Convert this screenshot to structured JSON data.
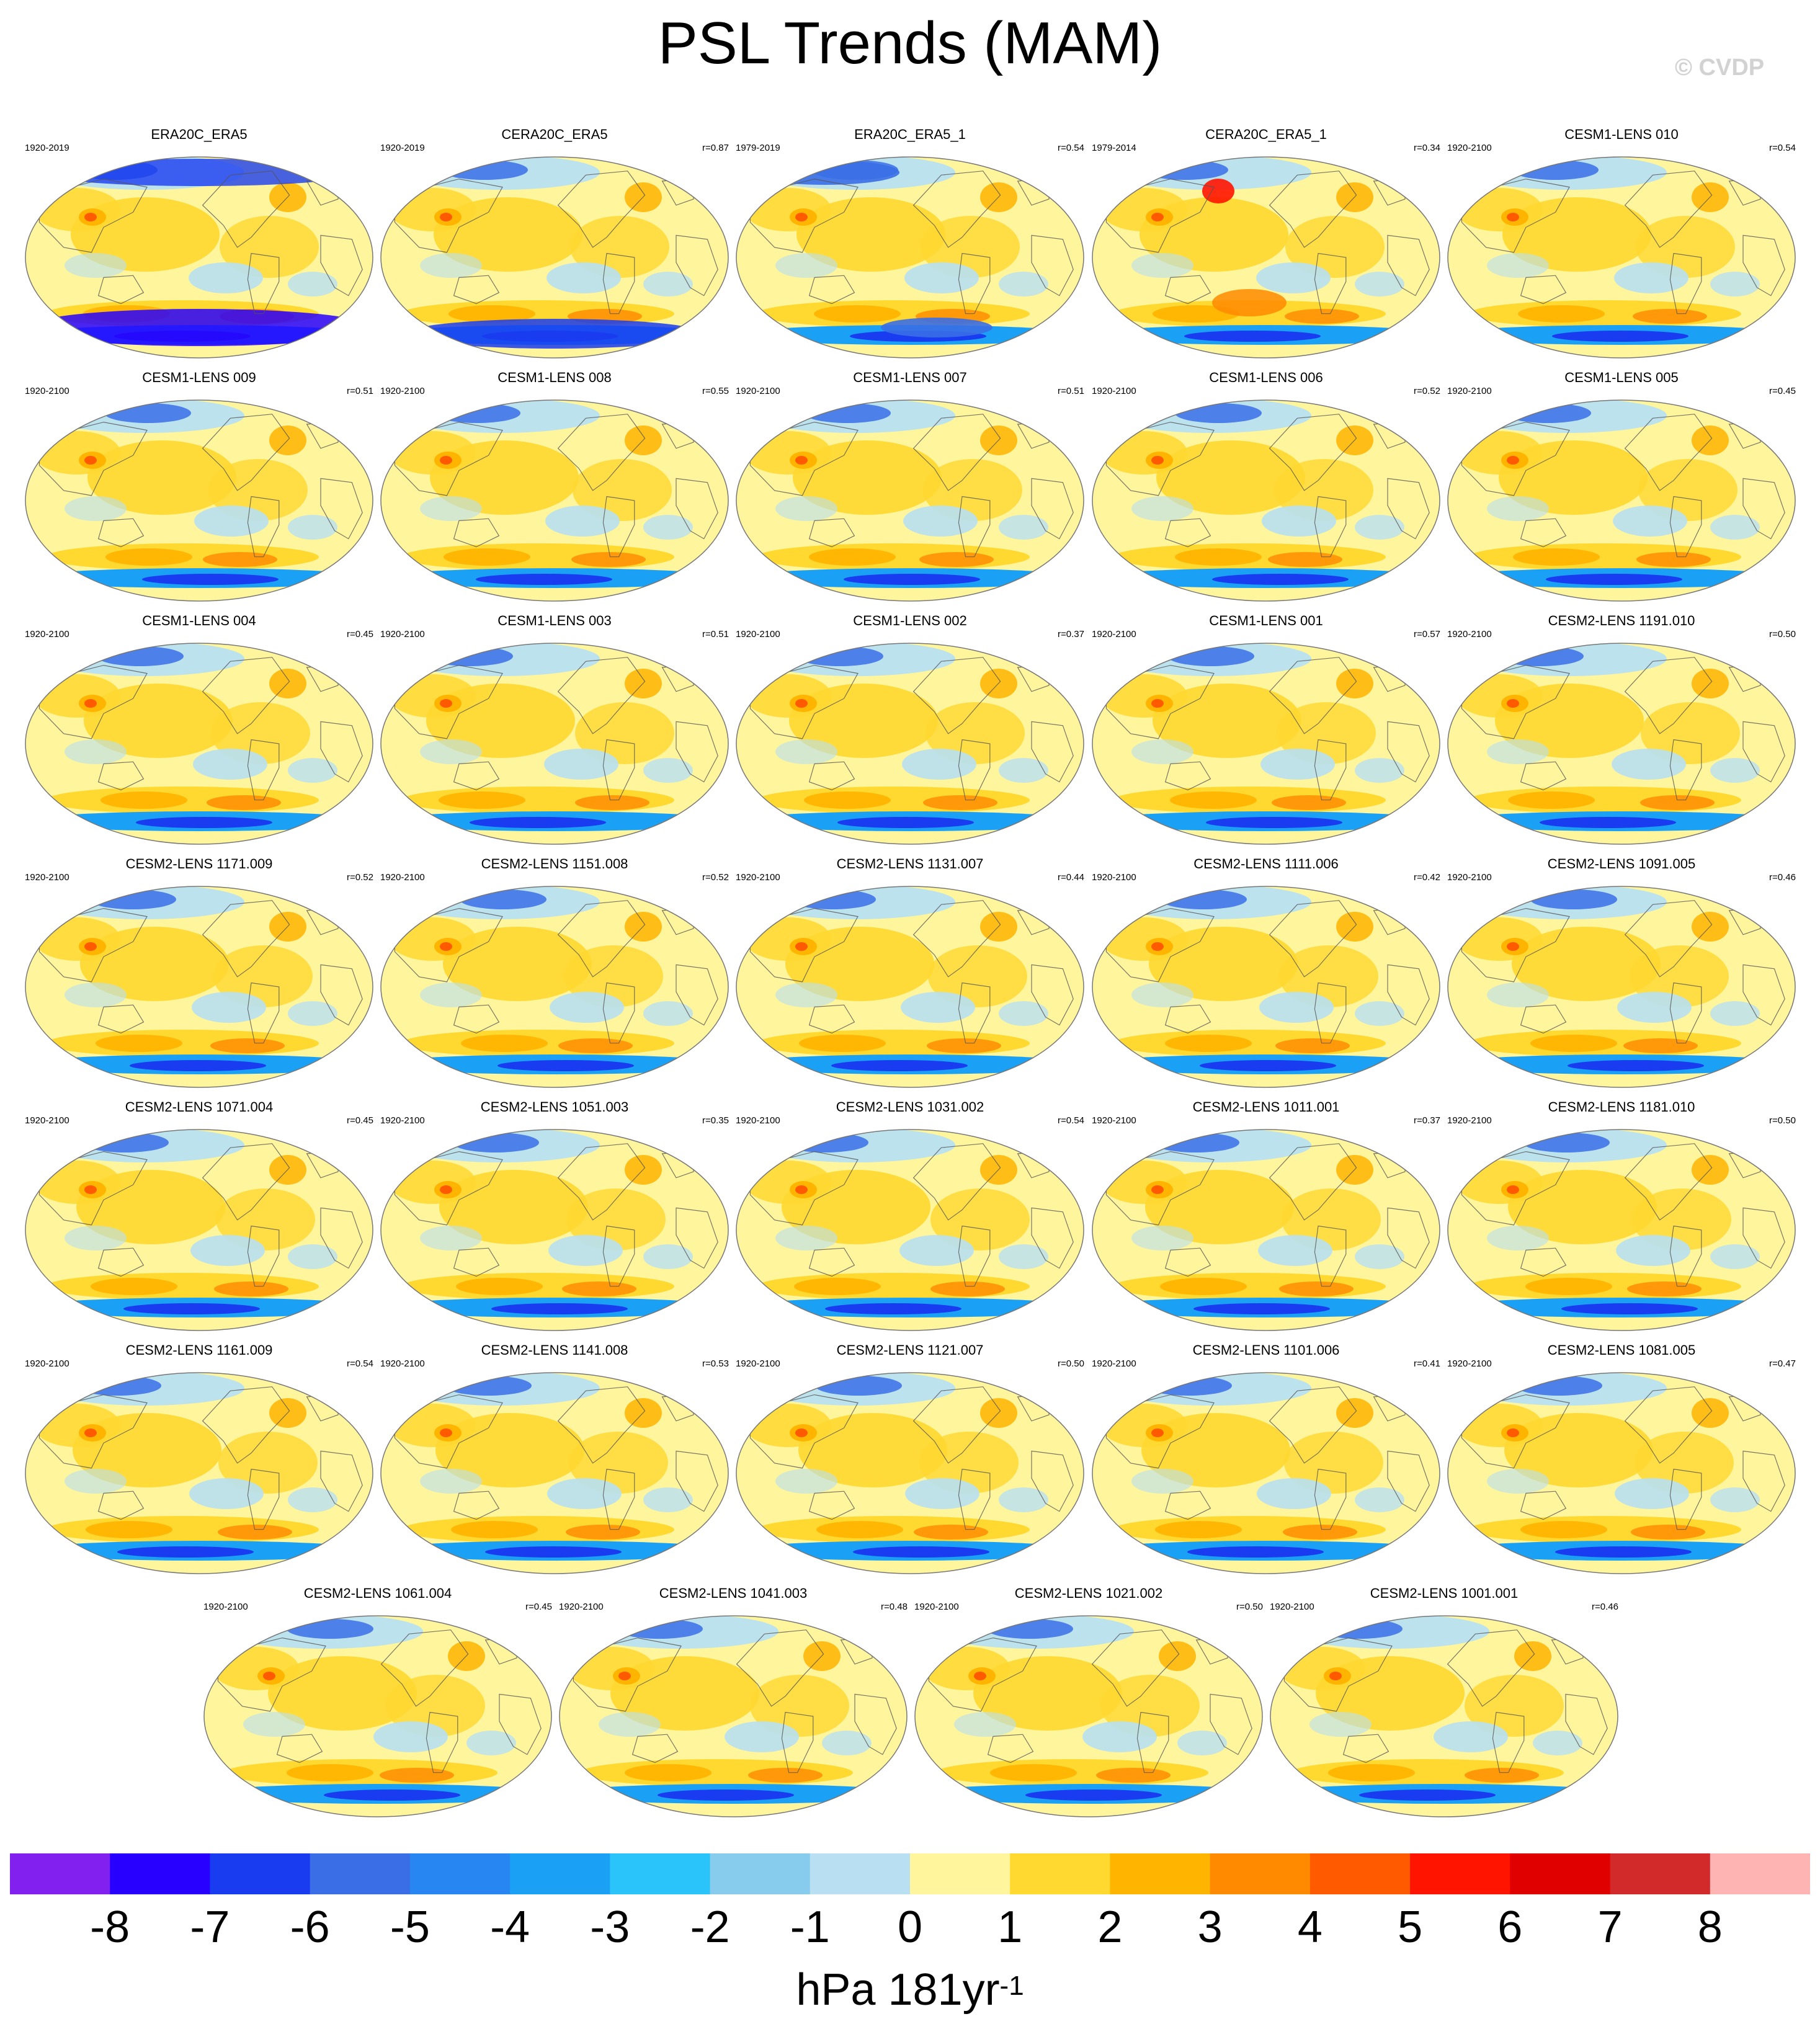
{
  "title": "PSL Trends (MAM)",
  "credit": "© CVDP",
  "colorbar": {
    "colors": [
      "#8220f0",
      "#2800ff",
      "#1a3cf0",
      "#3a6ee6",
      "#2886f2",
      "#1aa0f5",
      "#2ac4fa",
      "#88cced",
      "#b8e0f2",
      "#fff59c",
      "#ffd830",
      "#ffb400",
      "#ff8a00",
      "#ff5a00",
      "#ff1400",
      "#e00000",
      "#d22a2a",
      "#ffb4b4"
    ],
    "ticks": [
      "-8",
      "-7",
      "-6",
      "-5",
      "-4",
      "-3",
      "-2",
      "-1",
      "0",
      "1",
      "2",
      "3",
      "4",
      "5",
      "6",
      "7",
      "8"
    ]
  },
  "units": {
    "text": "hPa 181yr",
    "sup": "-1"
  },
  "panels": [
    {
      "title": "ERA20C_ERA5",
      "period": "1920-2019",
      "corr": ""
    },
    {
      "title": "CERA20C_ERA5",
      "period": "1920-2019",
      "corr": "r=0.87"
    },
    {
      "title": "ERA20C_ERA5_1",
      "period": "1979-2019",
      "corr": "r=0.54"
    },
    {
      "title": "CERA20C_ERA5_1",
      "period": "1979-2014",
      "corr": "r=0.34"
    },
    {
      "title": "CESM1-LENS 010",
      "period": "1920-2100",
      "corr": "r=0.54"
    },
    {
      "title": "CESM1-LENS 009",
      "period": "1920-2100",
      "corr": "r=0.51"
    },
    {
      "title": "CESM1-LENS 008",
      "period": "1920-2100",
      "corr": "r=0.55"
    },
    {
      "title": "CESM1-LENS 007",
      "period": "1920-2100",
      "corr": "r=0.51"
    },
    {
      "title": "CESM1-LENS 006",
      "period": "1920-2100",
      "corr": "r=0.52"
    },
    {
      "title": "CESM1-LENS 005",
      "period": "1920-2100",
      "corr": "r=0.45"
    },
    {
      "title": "CESM1-LENS 004",
      "period": "1920-2100",
      "corr": "r=0.45"
    },
    {
      "title": "CESM1-LENS 003",
      "period": "1920-2100",
      "corr": "r=0.51"
    },
    {
      "title": "CESM1-LENS 002",
      "period": "1920-2100",
      "corr": "r=0.37"
    },
    {
      "title": "CESM1-LENS 001",
      "period": "1920-2100",
      "corr": "r=0.57"
    },
    {
      "title": "CESM2-LENS 1191.010",
      "period": "1920-2100",
      "corr": "r=0.50"
    },
    {
      "title": "CESM2-LENS 1171.009",
      "period": "1920-2100",
      "corr": "r=0.52"
    },
    {
      "title": "CESM2-LENS 1151.008",
      "period": "1920-2100",
      "corr": "r=0.52"
    },
    {
      "title": "CESM2-LENS 1131.007",
      "period": "1920-2100",
      "corr": "r=0.44"
    },
    {
      "title": "CESM2-LENS 1111.006",
      "period": "1920-2100",
      "corr": "r=0.42"
    },
    {
      "title": "CESM2-LENS 1091.005",
      "period": "1920-2100",
      "corr": "r=0.46"
    },
    {
      "title": "CESM2-LENS 1071.004",
      "period": "1920-2100",
      "corr": "r=0.45"
    },
    {
      "title": "CESM2-LENS 1051.003",
      "period": "1920-2100",
      "corr": "r=0.35"
    },
    {
      "title": "CESM2-LENS 1031.002",
      "period": "1920-2100",
      "corr": "r=0.54"
    },
    {
      "title": "CESM2-LENS 1011.001",
      "period": "1920-2100",
      "corr": "r=0.37"
    },
    {
      "title": "CESM2-LENS 1181.010",
      "period": "1920-2100",
      "corr": "r=0.50"
    },
    {
      "title": "CESM2-LENS 1161.009",
      "period": "1920-2100",
      "corr": "r=0.54"
    },
    {
      "title": "CESM2-LENS 1141.008",
      "period": "1920-2100",
      "corr": "r=0.53"
    },
    {
      "title": "CESM2-LENS 1121.007",
      "period": "1920-2100",
      "corr": "r=0.50"
    },
    {
      "title": "CESM2-LENS 1101.006",
      "period": "1920-2100",
      "corr": "r=0.41"
    },
    {
      "title": "CESM2-LENS 1081.005",
      "period": "1920-2100",
      "corr": "r=0.47"
    },
    {
      "title": "CESM2-LENS 1061.004",
      "period": "1920-2100",
      "corr": "r=0.45"
    },
    {
      "title": "CESM2-LENS 1041.003",
      "period": "1920-2100",
      "corr": "r=0.48"
    },
    {
      "title": "CESM2-LENS 1021.002",
      "period": "1920-2100",
      "corr": "r=0.50"
    },
    {
      "title": "CESM2-LENS 1001.001",
      "period": "1920-2100",
      "corr": "r=0.46"
    }
  ]
}
